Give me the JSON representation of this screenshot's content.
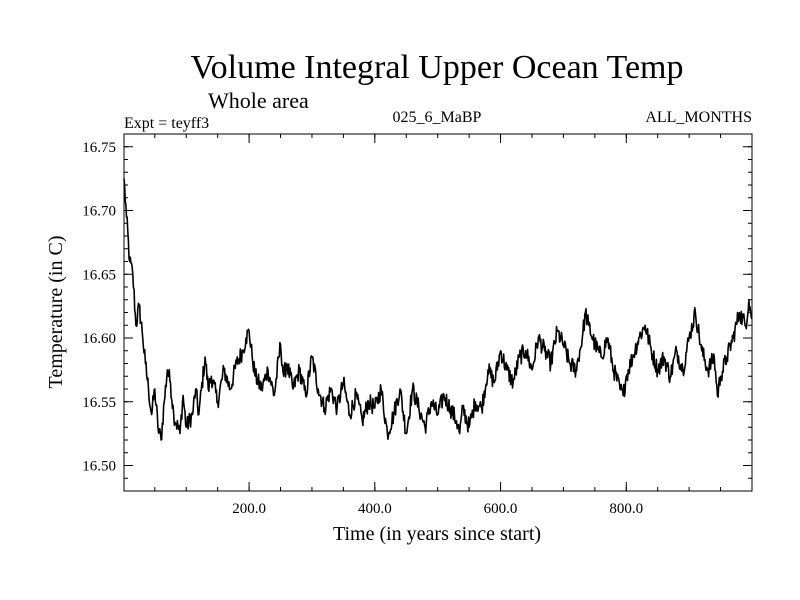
{
  "chart_data": {
    "type": "line",
    "title": "Volume Integral Upper Ocean Temp",
    "subtitle": "Whole area",
    "experiment_label": "Expt = teyff3",
    "run_label": "025_6_MaBP",
    "months_label": "ALL_MONTHS",
    "xlabel": "Time (in years since start)",
    "ylabel": "Temperature (in C)",
    "xlim": [
      1,
      1000
    ],
    "ylim": [
      16.48,
      16.76
    ],
    "x_ticks": [
      {
        "value": 200,
        "label": "200.0"
      },
      {
        "value": 400,
        "label": "400.0"
      },
      {
        "value": 600,
        "label": "600.0"
      },
      {
        "value": 800,
        "label": "800.0"
      }
    ],
    "y_ticks": [
      {
        "value": 16.5,
        "label": "16.50"
      },
      {
        "value": 16.55,
        "label": "16.55"
      },
      {
        "value": 16.6,
        "label": "16.60"
      },
      {
        "value": 16.65,
        "label": "16.65"
      },
      {
        "value": 16.7,
        "label": "16.70"
      },
      {
        "value": 16.75,
        "label": "16.75"
      }
    ],
    "grid": false,
    "line_color": "#000000",
    "series": [
      {
        "name": "teyff3",
        "x": [
          1,
          5,
          10,
          15,
          20,
          25,
          30,
          35,
          40,
          45,
          50,
          55,
          60,
          65,
          70,
          75,
          80,
          90,
          95,
          100,
          110,
          115,
          120,
          130,
          135,
          140,
          150,
          160,
          170,
          180,
          190,
          195,
          200,
          205,
          210,
          220,
          230,
          240,
          250,
          255,
          260,
          270,
          280,
          290,
          300,
          310,
          320,
          330,
          340,
          350,
          360,
          370,
          380,
          390,
          400,
          410,
          420,
          430,
          440,
          450,
          460,
          470,
          480,
          490,
          500,
          510,
          520,
          530,
          535,
          540,
          550,
          560,
          570,
          580,
          590,
          600,
          610,
          620,
          630,
          640,
          650,
          660,
          670,
          680,
          690,
          700,
          710,
          720,
          730,
          735,
          740,
          750,
          760,
          770,
          780,
          790,
          795,
          800,
          810,
          820,
          830,
          840,
          850,
          860,
          870,
          880,
          890,
          900,
          910,
          920,
          930,
          940,
          945,
          950,
          960,
          970,
          980,
          990,
          995,
          1000
        ],
        "values": [
          16.725,
          16.695,
          16.66,
          16.65,
          16.61,
          16.625,
          16.605,
          16.58,
          16.56,
          16.54,
          16.56,
          16.53,
          16.52,
          16.55,
          16.575,
          16.565,
          16.54,
          16.525,
          16.555,
          16.53,
          16.54,
          16.56,
          16.54,
          16.585,
          16.56,
          16.57,
          16.55,
          16.575,
          16.56,
          16.58,
          16.59,
          16.6,
          16.605,
          16.585,
          16.57,
          16.56,
          16.575,
          16.555,
          16.595,
          16.57,
          16.58,
          16.56,
          16.575,
          16.555,
          16.585,
          16.56,
          16.545,
          16.56,
          16.545,
          16.565,
          16.54,
          16.555,
          16.535,
          16.55,
          16.545,
          16.56,
          16.525,
          16.54,
          16.56,
          16.525,
          16.56,
          16.545,
          16.53,
          16.55,
          16.54,
          16.555,
          16.545,
          16.535,
          16.525,
          16.545,
          16.53,
          16.55,
          16.545,
          16.575,
          16.565,
          16.59,
          16.575,
          16.565,
          16.585,
          16.59,
          16.575,
          16.6,
          16.59,
          16.58,
          16.605,
          16.595,
          16.58,
          16.575,
          16.6,
          16.62,
          16.61,
          16.595,
          16.585,
          16.6,
          16.575,
          16.56,
          16.555,
          16.57,
          16.585,
          16.6,
          16.61,
          16.59,
          16.575,
          16.585,
          16.57,
          16.59,
          16.575,
          16.6,
          16.62,
          16.59,
          16.575,
          16.585,
          16.555,
          16.57,
          16.585,
          16.6,
          16.62,
          16.61,
          16.63,
          16.615
        ]
      }
    ]
  }
}
